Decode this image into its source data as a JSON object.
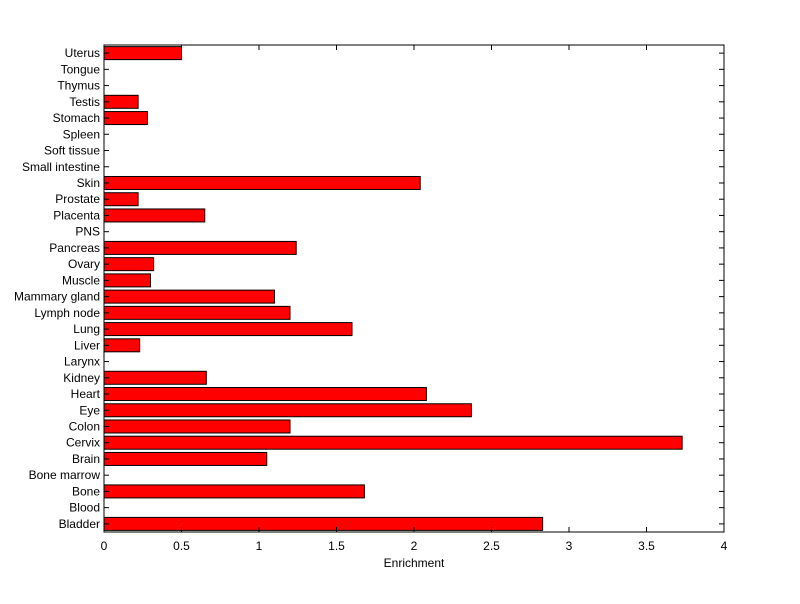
{
  "chart_data": {
    "type": "bar",
    "orientation": "horizontal",
    "categories": [
      "Bladder",
      "Blood",
      "Bone",
      "Bone marrow",
      "Brain",
      "Cervix",
      "Colon",
      "Eye",
      "Heart",
      "Kidney",
      "Larynx",
      "Liver",
      "Lung",
      "Lymph node",
      "Mammary gland",
      "Muscle",
      "Ovary",
      "Pancreas",
      "PNS",
      "Placenta",
      "Prostate",
      "Skin",
      "Small intestine",
      "Soft tissue",
      "Spleen",
      "Stomach",
      "Testis",
      "Thymus",
      "Tongue",
      "Uterus"
    ],
    "values": [
      2.83,
      0,
      1.68,
      0,
      1.05,
      3.73,
      1.2,
      2.37,
      2.08,
      0.66,
      0,
      0.23,
      1.6,
      1.2,
      1.1,
      0.3,
      0.32,
      1.24,
      0,
      0.65,
      0.22,
      2.04,
      0,
      0,
      0,
      0.28,
      0.22,
      0,
      0,
      0.5
    ],
    "title": "",
    "xlabel": "Enrichment",
    "ylabel": "",
    "xlim": [
      0,
      4
    ],
    "xticks": [
      "0",
      "0.5",
      "1",
      "1.5",
      "2",
      "2.5",
      "3",
      "3.5",
      "4"
    ],
    "bar_color": "#ff0000",
    "edge_color": "#000000",
    "grid": false
  }
}
